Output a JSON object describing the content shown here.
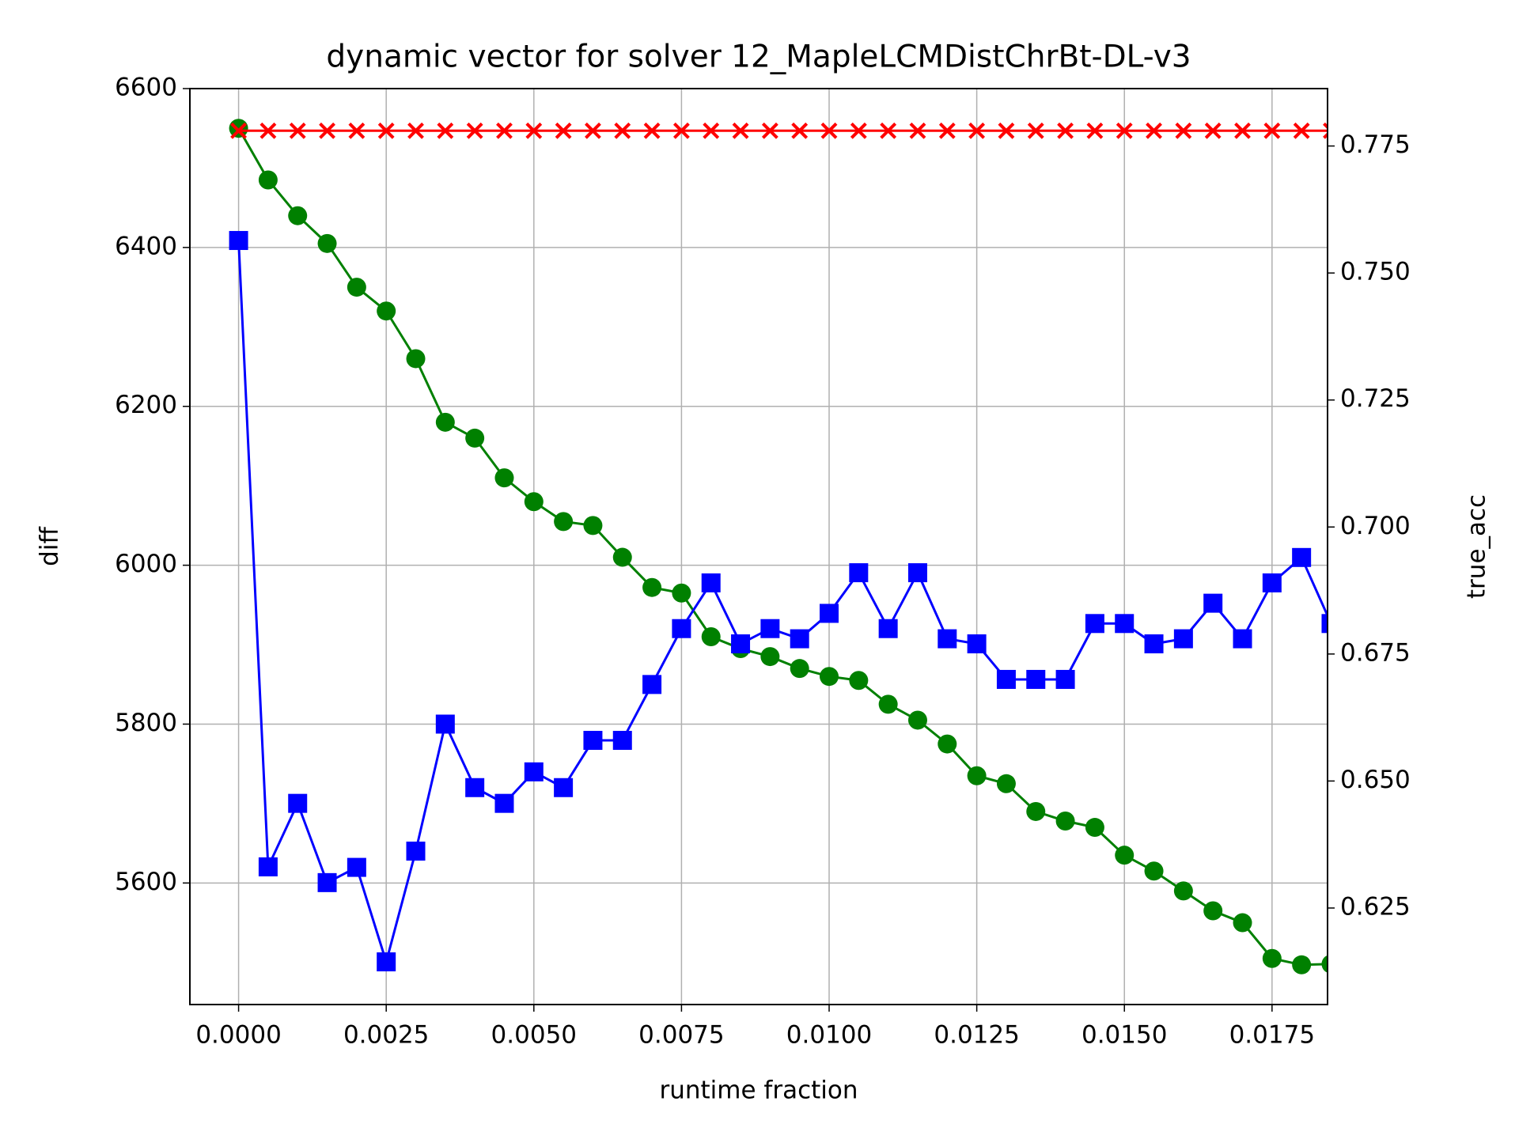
{
  "chart_data": {
    "type": "line",
    "title": "dynamic vector for solver 12_MapleLCMDistChrBt-DL-v3",
    "xlabel": "runtime fraction",
    "ylabel": "diff",
    "y2label": "true_acc",
    "ylabel_color": "green",
    "y2label_color": "red",
    "x": [
      0,
      0.0005,
      0.001,
      0.0015,
      0.002,
      0.0025,
      0.003,
      0.0035,
      0.004,
      0.0045,
      0.005,
      0.0055,
      0.006,
      0.0065,
      0.007,
      0.0075,
      0.008,
      0.0085,
      0.009,
      0.0095,
      0.01,
      0.0105,
      0.011,
      0.0115,
      0.012,
      0.0125,
      0.013,
      0.0135,
      0.014,
      0.0145,
      0.015,
      0.0155,
      0.016,
      0.0165,
      0.017,
      0.0175,
      0.018,
      0.0185
    ],
    "series": [
      {
        "color": "green",
        "marker": "o",
        "axis": "y",
        "values": [
          6550,
          6485,
          6440,
          6405,
          6350,
          6320,
          6260,
          6180,
          6160,
          6110,
          6080,
          6055,
          6050,
          6010,
          5972,
          5965,
          5910,
          5895,
          5885,
          5870,
          5860,
          5855,
          5825,
          5805,
          5775,
          5735,
          5725,
          5690,
          5678,
          5670,
          5635,
          5615,
          5590,
          5565,
          5550,
          5505,
          5497,
          5498
        ]
      },
      {
        "color": "blue",
        "marker": "s",
        "axis": "y2",
        "values": [
          0.7564,
          0.6331,
          0.6456,
          0.63,
          0.633,
          0.6144,
          0.6362,
          0.6612,
          0.6487,
          0.6456,
          0.6518,
          0.6487,
          0.658,
          0.658,
          0.669,
          0.68,
          0.689,
          0.677,
          0.68,
          0.678,
          0.683,
          0.691,
          0.68,
          0.691,
          0.678,
          0.677,
          0.67,
          0.67,
          0.67,
          0.681,
          0.681,
          0.677,
          0.678,
          0.685,
          0.678,
          0.689,
          0.694,
          0.681
        ]
      },
      {
        "color": "red",
        "marker": "x",
        "axis": "y2",
        "values": [
          0.778,
          0.778,
          0.778,
          0.778,
          0.778,
          0.778,
          0.778,
          0.778,
          0.778,
          0.778,
          0.778,
          0.778,
          0.778,
          0.778,
          0.778,
          0.778,
          0.778,
          0.778,
          0.778,
          0.778,
          0.778,
          0.778,
          0.778,
          0.778,
          0.778,
          0.778,
          0.778,
          0.778,
          0.778,
          0.778,
          0.778,
          0.778,
          0.778,
          0.778,
          0.778,
          0.778,
          0.778,
          0.778
        ]
      }
    ],
    "xlim": [
      -0.000825,
      0.01844
    ],
    "xticks": [
      {
        "value": 0,
        "label": "0.0000"
      },
      {
        "value": 0.0025,
        "label": "0.0025"
      },
      {
        "value": 0.005,
        "label": "0.0050"
      },
      {
        "value": 0.0075,
        "label": "0.0075"
      },
      {
        "value": 0.01,
        "label": "0.0100"
      },
      {
        "value": 0.0125,
        "label": "0.0125"
      },
      {
        "value": 0.015,
        "label": "0.0150"
      },
      {
        "value": 0.0175,
        "label": "0.0175"
      }
    ],
    "ylim": [
      5447,
      6600
    ],
    "yticks": [
      5600,
      5800,
      6000,
      6200,
      6400,
      6600
    ],
    "y2lim": [
      0.606,
      0.7863
    ],
    "y2ticks": [
      0.625,
      {
        "value": 0.65,
        "label": "0.650"
      },
      0.675,
      {
        "value": 0.7,
        "label": "0.700"
      },
      0.725,
      {
        "value": 0.75,
        "label": "0.750"
      },
      0.775
    ],
    "grid": true
  }
}
